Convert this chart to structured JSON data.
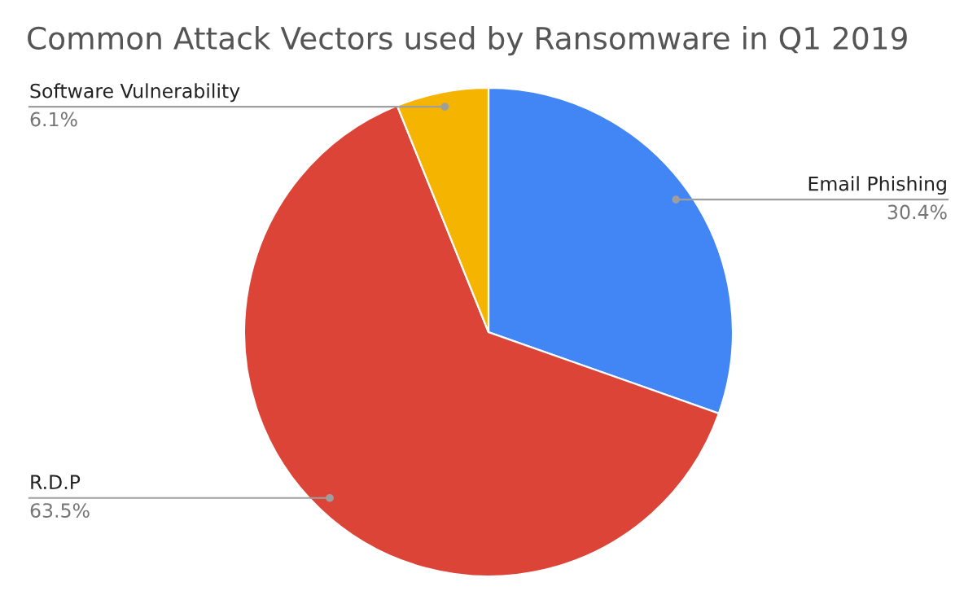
{
  "chart_data": {
    "type": "pie",
    "title": "Common Attack Vectors used by Ransomware in Q1 2019",
    "categories": [
      "Email Phishing",
      "R.D.P",
      "Software Vulnerability"
    ],
    "values": [
      30.4,
      63.5,
      6.1
    ],
    "value_labels": [
      "30.4%",
      "63.5%",
      "6.1%"
    ],
    "colors": [
      "#4285f4",
      "#db4437",
      "#f4b400"
    ]
  }
}
